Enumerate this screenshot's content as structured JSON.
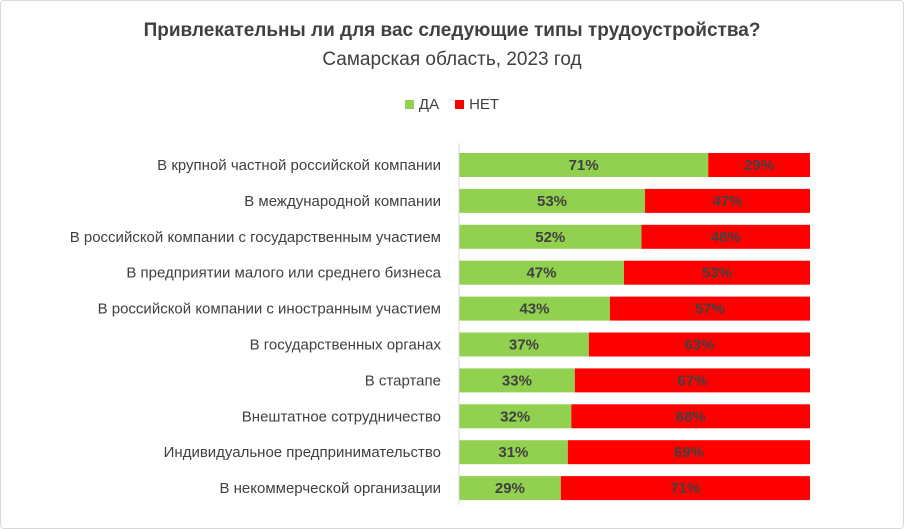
{
  "chart_data": {
    "type": "bar",
    "orientation": "horizontal",
    "stacked": true,
    "percent": true,
    "title": "Привлекательны ли для вас следующие типы трудоустройства?",
    "subtitle": "Самарская область, 2023 год",
    "categories": [
      "В крупной частной российской компании",
      "В международной компании",
      "В российской компании с государственным участием",
      "В предприятии малого или среднего бизнеса",
      "В российской компании с иностранным участием",
      "В государственных органах",
      "В стартапе",
      "Внештатное сотрудничество",
      "Индивидуальное предпринимательство",
      "В некоммерческой организации"
    ],
    "series": [
      {
        "name": "ДА",
        "color": "#92d050",
        "values": [
          71,
          53,
          52,
          47,
          43,
          37,
          33,
          32,
          31,
          29
        ]
      },
      {
        "name": "НЕТ",
        "color": "#ff0000",
        "values": [
          29,
          47,
          48,
          53,
          57,
          63,
          67,
          68,
          69,
          71
        ]
      }
    ],
    "xlim": [
      0,
      100
    ],
    "legend": "top",
    "grid": false
  }
}
